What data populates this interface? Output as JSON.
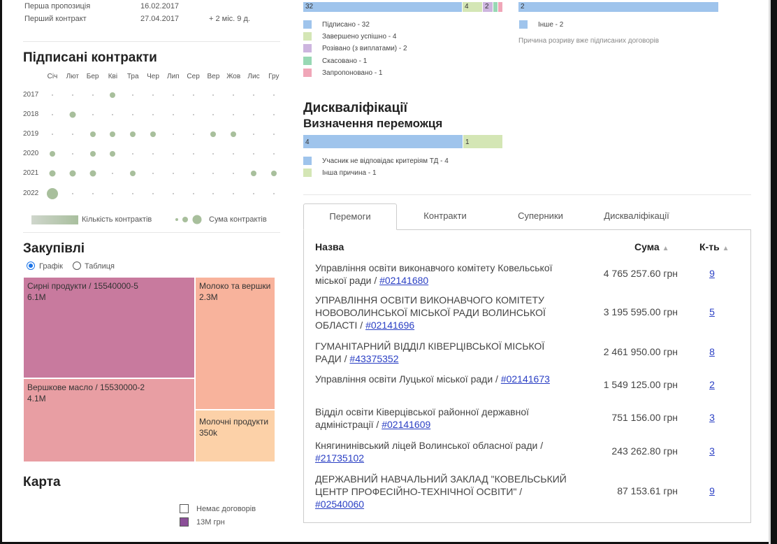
{
  "info": {
    "first_offer_label": "Перша пропозиція",
    "first_offer_date": "16.02.2017",
    "first_contract_label": "Перший контракт",
    "first_contract_date": "27.04.2017",
    "first_contract_delta": "+ 2 міс. 9 д."
  },
  "signed": {
    "title": "Підписані контракти",
    "months": [
      "Січ",
      "Лют",
      "Бер",
      "Кві",
      "Тра",
      "Чер",
      "Лип",
      "Сер",
      "Вер",
      "Жов",
      "Лис",
      "Гру"
    ],
    "years": [
      "2017",
      "2018",
      "2019",
      "2020",
      "2021",
      "2022"
    ],
    "legend_count": "Кількість контрактів",
    "legend_sum": "Сума контрактів"
  },
  "purchases": {
    "title": "Закупівлі",
    "radio_chart": "Графік",
    "radio_table": "Таблиця",
    "tiles": [
      {
        "label": "Сирні продукти / 15540000-5",
        "value": "6.1M",
        "color": "#c87a9e"
      },
      {
        "label": "Вершкове масло / 15530000-2",
        "value": "4.1M",
        "color": "#e89ea3"
      },
      {
        "label": "Молоко та вершки",
        "value": "2.3M",
        "color": "#f8b39c"
      },
      {
        "label": "Молочні продукти",
        "value": "350k",
        "color": "#fcd1a8"
      }
    ]
  },
  "map": {
    "title": "Карта",
    "legend_none": "Немає договорів",
    "legend_value": "13М грн",
    "color_value": "#8b4f98"
  },
  "status": {
    "bar_values": [
      "32",
      "4",
      "2"
    ],
    "items": [
      {
        "label": "Підписано - 32",
        "color": "#9fc4ec"
      },
      {
        "label": "Завершено успішно - 4",
        "color": "#d4e6b5"
      },
      {
        "label": "Розівано (з виплатами) - 2",
        "color": "#cdb5df"
      },
      {
        "label": "Скасовано - 1",
        "color": "#98d8b4"
      },
      {
        "label": "Запропоновано - 1",
        "color": "#f0a6b8"
      }
    ]
  },
  "termination": {
    "bar_value": "2",
    "items": [
      {
        "label": "Інше - 2",
        "color": "#9fc4ec"
      }
    ],
    "caption": "Причина розриву вже підписаних договорів"
  },
  "disq": {
    "title": "Дискваліфікації",
    "subtitle": "Визначення переможця",
    "bar_values": [
      "4",
      "1"
    ],
    "items": [
      {
        "label": "Учасник не відповідає критеріям ТД - 4",
        "color": "#9fc4ec"
      },
      {
        "label": "Інша причина - 1",
        "color": "#d4e6b5"
      }
    ]
  },
  "tabs": [
    "Перемоги",
    "Контракти",
    "Суперники",
    "Дискваліфікації"
  ],
  "table": {
    "headers": {
      "name": "Назва",
      "sum": "Сума",
      "count": "К-ть"
    },
    "rows": [
      {
        "name": "Управління освіти виконавчого комітету Ковельської міської ради / ",
        "code": "#02141680",
        "sum": "4 765 257.60 грн",
        "count": "9"
      },
      {
        "name": "УПРАВЛІННЯ ОСВІТИ ВИКОНАВЧОГО КОМІТЕТУ НОВОВОЛИНСЬКОЇ МІСЬКОЇ РАДИ ВОЛИНСЬКОЇ ОБЛАСТІ / ",
        "code": "#02141696",
        "sum": "3 195 595.00 грн",
        "count": "5"
      },
      {
        "name": "ГУМАНІТАРНИЙ ВІДДІЛ КІВЕРЦІВСЬКОЇ МІСЬКОЇ РАДИ / ",
        "code": "#43375352",
        "sum": "2 461 950.00 грн",
        "count": "8"
      },
      {
        "name": "Управління освіти Луцької міської ради / ",
        "code": "#02141673",
        "sum": "1 549 125.00 грн",
        "count": "2"
      },
      {
        "name": "Відділ освіти Ківерцівської районної державної адміністрації / ",
        "code": "#02141609",
        "sum": "751 156.00 грн",
        "count": "3"
      },
      {
        "name": "Княгининівський ліцей Волинської обласної ради / ",
        "code": "#21735102",
        "sum": "243 262.80 грн",
        "count": "3"
      },
      {
        "name": "ДЕРЖАВНИЙ НАВЧАЛЬНИЙ ЗАКЛАД \"КОВЕЛЬСЬКИЙ ЦЕНТР ПРОФЕСІЙНО-ТЕХНІЧНОЇ ОСВІТИ\" / ",
        "code": "#02540060",
        "sum": "87 153.61 грн",
        "count": "9"
      }
    ]
  }
}
